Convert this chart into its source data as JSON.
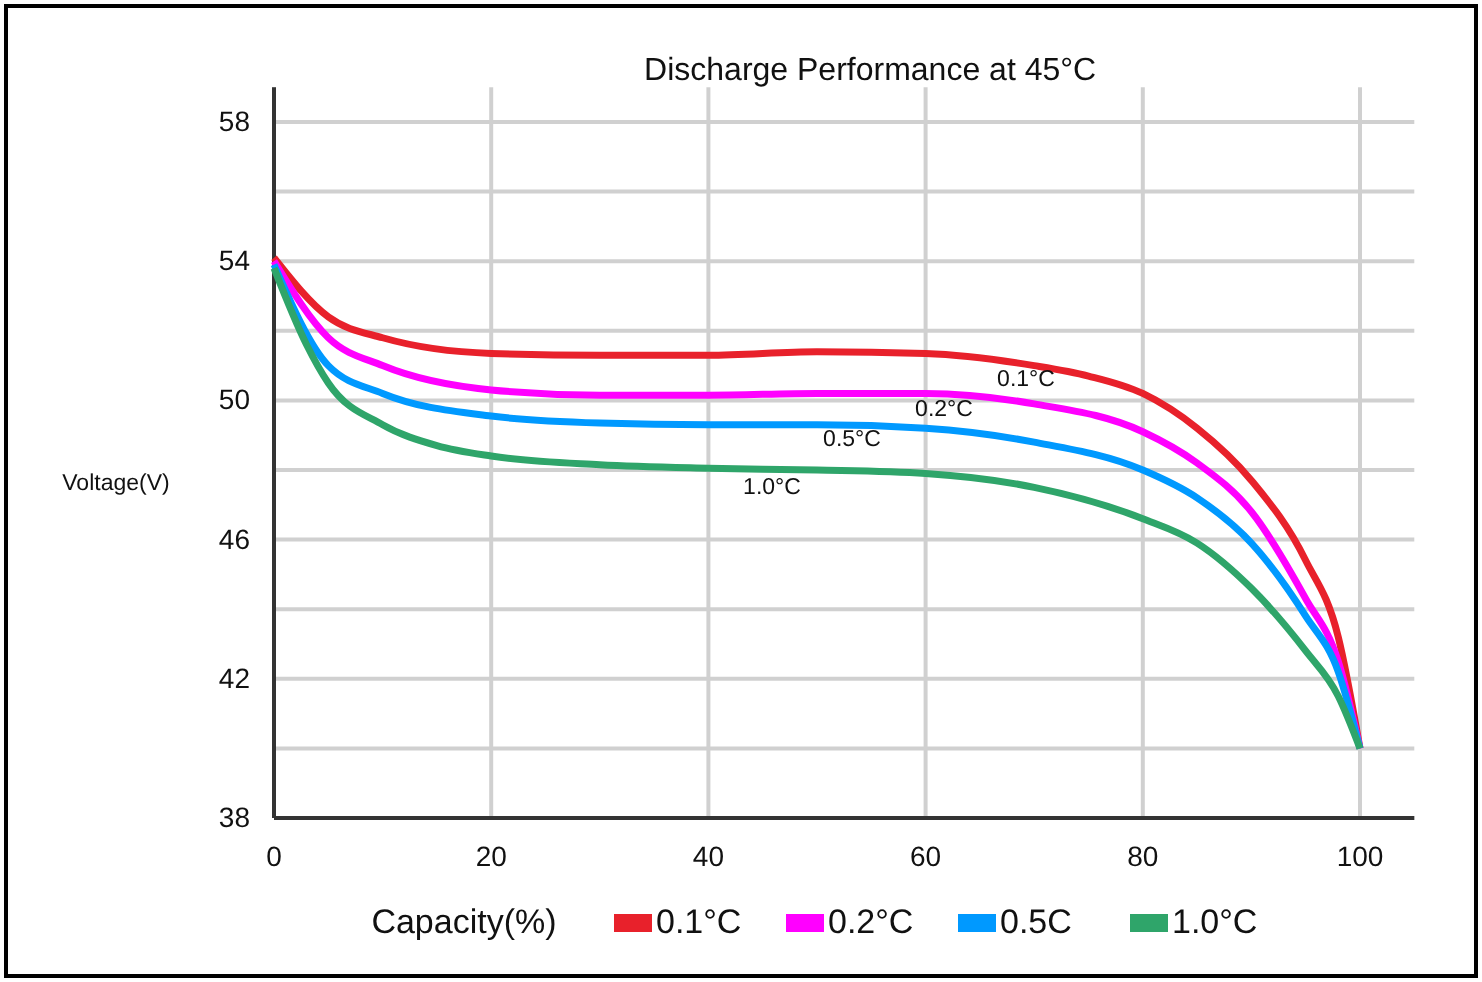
{
  "chart_data": {
    "type": "line",
    "title": "Discharge Performance at 45°C",
    "xlabel": "Capacity(%)",
    "ylabel": "Voltage(V)",
    "xlim": [
      0,
      105
    ],
    "xticks": [
      0,
      20,
      40,
      60,
      80,
      100
    ],
    "ylim": [
      38,
      59
    ],
    "yticks": [
      38,
      {
        "value": 40,
        "label": null
      },
      42,
      {
        "value": 44,
        "label": null
      },
      46,
      {
        "value": 48,
        "label": null
      },
      50,
      {
        "value": 52,
        "label": null
      },
      54,
      {
        "value": 56,
        "label": null
      },
      58
    ],
    "grid": true,
    "legend": "bottom",
    "line_style": "solid",
    "marker": "none",
    "series": [
      {
        "name": "0.1°C",
        "color": "#e8212b",
        "x": [
          0,
          5,
          10,
          20,
          30,
          40,
          50,
          60,
          70,
          75,
          80,
          85,
          90,
          95,
          98,
          100
        ],
        "values": [
          54.1,
          52.4,
          51.8,
          51.35,
          51.3,
          51.3,
          51.4,
          51.35,
          51.0,
          50.7,
          50.2,
          49.2,
          47.7,
          45.4,
          43.2,
          40
        ]
      },
      {
        "name": "0.2°C",
        "color": "#ff00ff",
        "x": [
          0,
          5,
          10,
          20,
          30,
          40,
          50,
          60,
          70,
          80,
          85,
          90,
          95,
          98,
          100
        ],
        "values": [
          54.0,
          51.8,
          51.0,
          50.3,
          50.15,
          50.15,
          50.2,
          50.2,
          49.9,
          49.1,
          48.2,
          46.8,
          44.3,
          42.5,
          40
        ]
      },
      {
        "name": "0.5C",
        "color": "#0099ff",
        "x": [
          0,
          5,
          10,
          20,
          30,
          40,
          50,
          60,
          70,
          80,
          85,
          90,
          95,
          98,
          100
        ],
        "values": [
          53.9,
          51.0,
          50.2,
          49.55,
          49.35,
          49.3,
          49.3,
          49.2,
          48.8,
          48.0,
          47.2,
          45.9,
          43.8,
          42.2,
          40
        ]
      },
      {
        "name": "1.0°C",
        "color": "#2fa56a",
        "x": [
          0,
          3,
          5,
          10,
          15,
          20,
          30,
          40,
          50,
          60,
          70,
          80,
          85,
          90,
          95,
          98,
          100
        ],
        "values": [
          53.8,
          51.6,
          50.5,
          49.3,
          48.7,
          48.4,
          48.15,
          48.05,
          48.0,
          47.9,
          47.5,
          46.6,
          45.9,
          44.6,
          42.8,
          41.5,
          40
        ]
      }
    ],
    "annotations": [
      "0.1°C",
      "0.2°C",
      "0.5°C",
      "1.0°C"
    ]
  }
}
